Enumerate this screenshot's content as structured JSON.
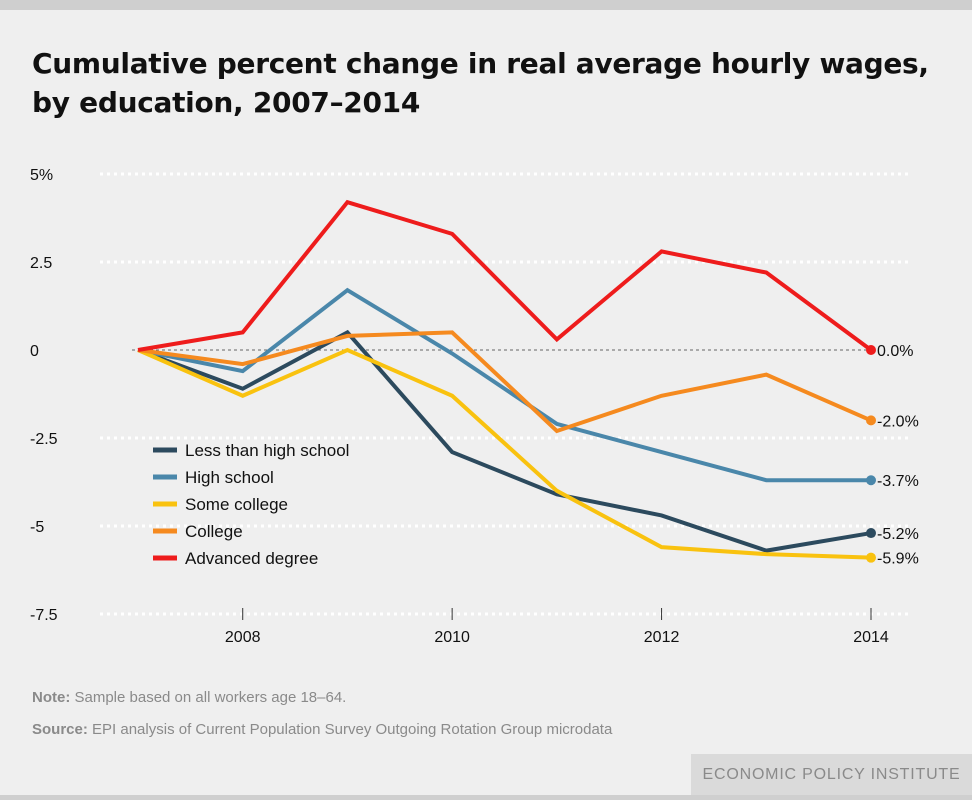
{
  "header": {
    "title": "Cumulative percent change in real average hourly wages, by education, 2007–2014"
  },
  "footer": {
    "note_label": "Note:",
    "note_text": " Sample based on all workers age 18–64.",
    "source_label": "Source:",
    "source_text": " EPI analysis of Current Population Survey Outgoing Rotation Group microdata",
    "brand": "ECONOMIC POLICY INSTITUTE"
  },
  "chart_data": {
    "type": "line",
    "title": "Cumulative percent change in real average hourly wages, by education, 2007–2014",
    "xlabel": "",
    "ylabel": "",
    "x": [
      2007,
      2008,
      2009,
      2010,
      2011,
      2012,
      2013,
      2014
    ],
    "xlim": [
      2007,
      2014
    ],
    "ylim": [
      -7.5,
      5
    ],
    "x_ticks": [
      "2008",
      "2010",
      "2012",
      "2014"
    ],
    "y_ticks": [
      {
        "value": 5,
        "label": "5%"
      },
      {
        "value": 2.5,
        "label": "2.5"
      },
      {
        "value": 0,
        "label": "0"
      },
      {
        "value": -2.5,
        "label": "-2.5"
      },
      {
        "value": -5,
        "label": "-5"
      },
      {
        "value": -7.5,
        "label": "-7.5"
      }
    ],
    "grid": "horizontal dotted",
    "legend_position": "lower-left",
    "series": [
      {
        "name": "Less than high school",
        "color": "#2c4a5e",
        "values": [
          0,
          -1.1,
          0.5,
          -2.9,
          -4.1,
          -4.7,
          -5.7,
          -5.2
        ],
        "end_label": "-5.2%"
      },
      {
        "name": "High school",
        "color": "#4a87aa",
        "values": [
          0,
          -0.6,
          1.7,
          -0.1,
          -2.1,
          -2.9,
          -3.7,
          -3.7
        ],
        "end_label": "-3.7%"
      },
      {
        "name": "Some college",
        "color": "#f9c20f",
        "values": [
          0,
          -1.3,
          0.0,
          -1.3,
          -4.0,
          -5.6,
          -5.8,
          -5.9
        ],
        "end_label": "-5.9%"
      },
      {
        "name": "College",
        "color": "#f58a1f",
        "values": [
          0,
          -0.4,
          0.4,
          0.5,
          -2.3,
          -1.3,
          -0.7,
          -2.0
        ],
        "end_label": "-2.0%"
      },
      {
        "name": "Advanced degree",
        "color": "#ee1c1c",
        "values": [
          0,
          0.5,
          4.2,
          3.3,
          0.3,
          2.8,
          2.2,
          0.0
        ],
        "end_label": "0.0%"
      }
    ]
  }
}
